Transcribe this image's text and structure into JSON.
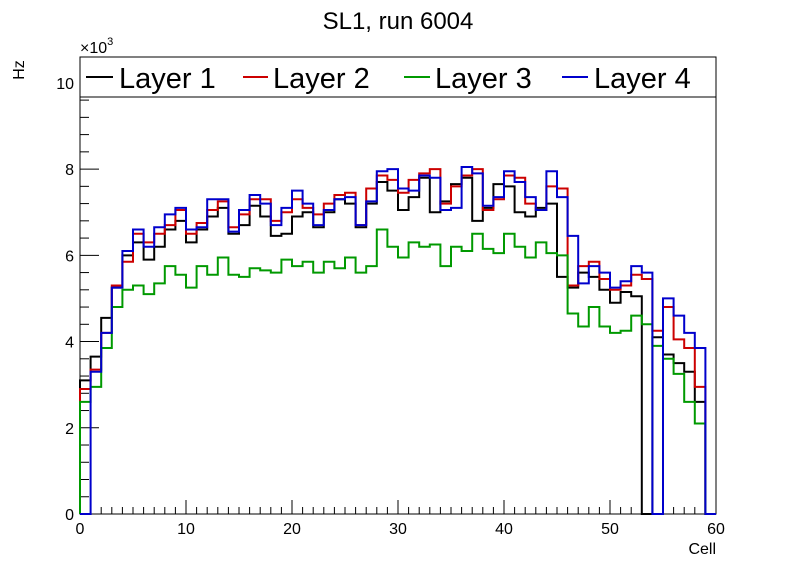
{
  "chart_data": {
    "type": "line",
    "title": "SL1, run 6004",
    "xlabel": "Cell",
    "ylabel": "Hz",
    "y_exponent_label": "×10",
    "y_exponent_power": "3",
    "xlim": [
      0,
      60
    ],
    "ylim": [
      0,
      10.6
    ],
    "x_ticks": [
      "0",
      "10",
      "20",
      "30",
      "40",
      "50",
      "60"
    ],
    "y_ticks": [
      "0",
      "2",
      "4",
      "6",
      "8",
      "10"
    ],
    "grid": false,
    "legend_position": "top",
    "bins": [
      0,
      1,
      2,
      3,
      4,
      5,
      6,
      7,
      8,
      9,
      10,
      11,
      12,
      13,
      14,
      15,
      16,
      17,
      18,
      19,
      20,
      21,
      22,
      23,
      24,
      25,
      26,
      27,
      28,
      29,
      30,
      31,
      32,
      33,
      34,
      35,
      36,
      37,
      38,
      39,
      40,
      41,
      42,
      43,
      44,
      45,
      46,
      47,
      48,
      49,
      50,
      51,
      52,
      53,
      54,
      55,
      56,
      57,
      58,
      59
    ],
    "series": [
      {
        "name": "Layer 1",
        "color": "#000000",
        "values": [
          3.1,
          3.65,
          4.55,
          5.25,
          6.0,
          6.3,
          5.9,
          6.2,
          6.6,
          6.8,
          6.3,
          6.6,
          6.9,
          7.1,
          6.5,
          6.7,
          7.15,
          6.9,
          6.45,
          6.5,
          6.9,
          7.0,
          6.65,
          7.0,
          7.3,
          7.2,
          6.65,
          7.2,
          7.7,
          7.5,
          7.05,
          7.35,
          7.8,
          7.0,
          7.25,
          7.65,
          7.8,
          6.8,
          7.1,
          7.65,
          7.6,
          7.0,
          6.9,
          7.1,
          7.2,
          5.5,
          5.25,
          5.6,
          5.5,
          5.2,
          4.9,
          5.15,
          5.05,
          0.0,
          4.1,
          3.7,
          3.5,
          3.3,
          2.6,
          0.0
        ]
      },
      {
        "name": "Layer 2",
        "color": "#cc0000",
        "values": [
          2.9,
          3.35,
          4.2,
          5.3,
          5.85,
          6.5,
          6.3,
          6.5,
          6.7,
          7.05,
          6.5,
          6.75,
          7.05,
          7.25,
          6.65,
          6.95,
          7.3,
          7.3,
          6.8,
          7.0,
          7.3,
          7.1,
          6.95,
          7.2,
          7.4,
          7.45,
          6.7,
          7.55,
          7.85,
          7.75,
          7.45,
          7.75,
          7.9,
          8.0,
          7.2,
          7.6,
          7.85,
          8.0,
          7.05,
          7.3,
          7.85,
          7.8,
          7.2,
          7.05,
          7.6,
          7.55,
          5.3,
          5.75,
          5.85,
          5.45,
          5.2,
          5.3,
          5.55,
          5.45,
          4.25,
          4.8,
          4.05,
          3.85,
          2.95,
          0.0
        ]
      },
      {
        "name": "Layer 3",
        "color": "#009900",
        "values": [
          2.6,
          2.95,
          3.85,
          4.8,
          5.2,
          5.3,
          5.1,
          5.35,
          5.75,
          5.55,
          5.25,
          5.75,
          5.55,
          5.95,
          5.55,
          5.5,
          5.7,
          5.65,
          5.6,
          5.9,
          5.75,
          5.85,
          5.6,
          5.85,
          5.7,
          5.95,
          5.6,
          5.75,
          6.6,
          6.2,
          5.95,
          6.3,
          6.2,
          6.25,
          5.75,
          6.2,
          6.1,
          6.5,
          6.15,
          6.05,
          6.5,
          6.2,
          5.95,
          6.3,
          6.05,
          6.0,
          4.65,
          4.35,
          4.8,
          4.35,
          4.2,
          4.25,
          4.6,
          4.4,
          3.9,
          3.6,
          3.25,
          2.6,
          2.1,
          0.0
        ]
      },
      {
        "name": "Layer 4",
        "color": "#0000cc",
        "values": [
          0.0,
          3.3,
          4.2,
          5.25,
          6.1,
          6.6,
          6.2,
          6.65,
          6.95,
          7.1,
          6.6,
          6.65,
          7.3,
          7.3,
          6.55,
          7.05,
          7.4,
          7.2,
          6.7,
          7.1,
          7.5,
          7.2,
          6.7,
          7.05,
          7.3,
          7.35,
          6.7,
          7.25,
          7.95,
          8.0,
          7.55,
          7.5,
          7.85,
          7.8,
          7.05,
          7.1,
          8.05,
          7.9,
          7.15,
          7.35,
          7.95,
          7.7,
          7.35,
          7.05,
          7.95,
          7.35,
          6.45,
          5.35,
          5.75,
          5.6,
          5.25,
          5.4,
          5.75,
          5.6,
          0.0,
          5.0,
          4.6,
          4.2,
          3.85,
          0.0
        ]
      }
    ]
  }
}
